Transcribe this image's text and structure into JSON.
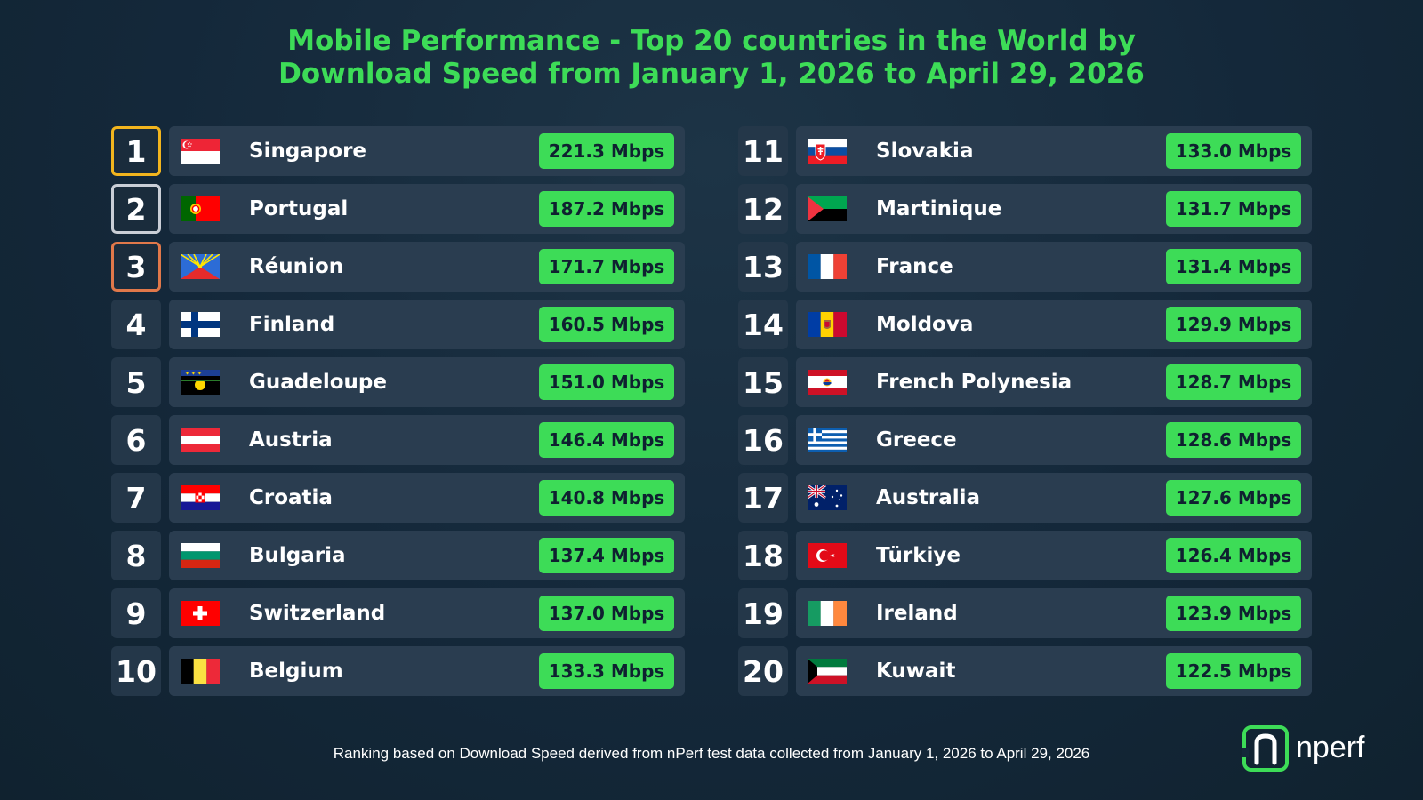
{
  "title": {
    "line1": "Mobile Performance - Top 20 countries in the World by",
    "line2": "Download Speed from January 1, 2026 to April 29, 2026"
  },
  "footer": "Ranking based on Download Speed derived from nPerf test data collected from January 1, 2026 to April 29, 2026",
  "logo_text": "nperf",
  "colors": {
    "accent": "#3ddc57",
    "gold": "#f2b51e",
    "silver": "#c9ced6",
    "bronze": "#e0784a",
    "background": "#14283a",
    "row": "#2a3d50"
  },
  "chart_data": {
    "type": "table",
    "columns": [
      "rank",
      "country",
      "download_speed"
    ],
    "unit": "Mbps",
    "rows": [
      {
        "rank": "1",
        "country": "Singapore",
        "speed": "221.3 Mbps",
        "value": 221.3,
        "flag": "singapore-flag"
      },
      {
        "rank": "2",
        "country": "Portugal",
        "speed": "187.2 Mbps",
        "value": 187.2,
        "flag": "portugal-flag"
      },
      {
        "rank": "3",
        "country": "Réunion",
        "speed": "171.7 Mbps",
        "value": 171.7,
        "flag": "reunion-flag"
      },
      {
        "rank": "4",
        "country": "Finland",
        "speed": "160.5 Mbps",
        "value": 160.5,
        "flag": "finland-flag"
      },
      {
        "rank": "5",
        "country": "Guadeloupe",
        "speed": "151.0 Mbps",
        "value": 151.0,
        "flag": "guadeloupe-flag"
      },
      {
        "rank": "6",
        "country": "Austria",
        "speed": "146.4 Mbps",
        "value": 146.4,
        "flag": "austria-flag"
      },
      {
        "rank": "7",
        "country": "Croatia",
        "speed": "140.8 Mbps",
        "value": 140.8,
        "flag": "croatia-flag"
      },
      {
        "rank": "8",
        "country": "Bulgaria",
        "speed": "137.4 Mbps",
        "value": 137.4,
        "flag": "bulgaria-flag"
      },
      {
        "rank": "9",
        "country": "Switzerland",
        "speed": "137.0 Mbps",
        "value": 137.0,
        "flag": "switzerland-flag"
      },
      {
        "rank": "10",
        "country": "Belgium",
        "speed": "133.3 Mbps",
        "value": 133.3,
        "flag": "belgium-flag"
      },
      {
        "rank": "11",
        "country": "Slovakia",
        "speed": "133.0 Mbps",
        "value": 133.0,
        "flag": "slovakia-flag"
      },
      {
        "rank": "12",
        "country": "Martinique",
        "speed": "131.7 Mbps",
        "value": 131.7,
        "flag": "martinique-flag"
      },
      {
        "rank": "13",
        "country": "France",
        "speed": "131.4 Mbps",
        "value": 131.4,
        "flag": "france-flag"
      },
      {
        "rank": "14",
        "country": "Moldova",
        "speed": "129.9 Mbps",
        "value": 129.9,
        "flag": "moldova-flag"
      },
      {
        "rank": "15",
        "country": "French Polynesia",
        "speed": "128.7 Mbps",
        "value": 128.7,
        "flag": "french-polynesia-flag"
      },
      {
        "rank": "16",
        "country": "Greece",
        "speed": "128.6 Mbps",
        "value": 128.6,
        "flag": "greece-flag"
      },
      {
        "rank": "17",
        "country": "Australia",
        "speed": "127.6 Mbps",
        "value": 127.6,
        "flag": "australia-flag"
      },
      {
        "rank": "18",
        "country": "Türkiye",
        "speed": "126.4 Mbps",
        "value": 126.4,
        "flag": "turkiye-flag"
      },
      {
        "rank": "19",
        "country": "Ireland",
        "speed": "123.9 Mbps",
        "value": 123.9,
        "flag": "ireland-flag"
      },
      {
        "rank": "20",
        "country": "Kuwait",
        "speed": "122.5 Mbps",
        "value": 122.5,
        "flag": "kuwait-flag"
      }
    ]
  }
}
